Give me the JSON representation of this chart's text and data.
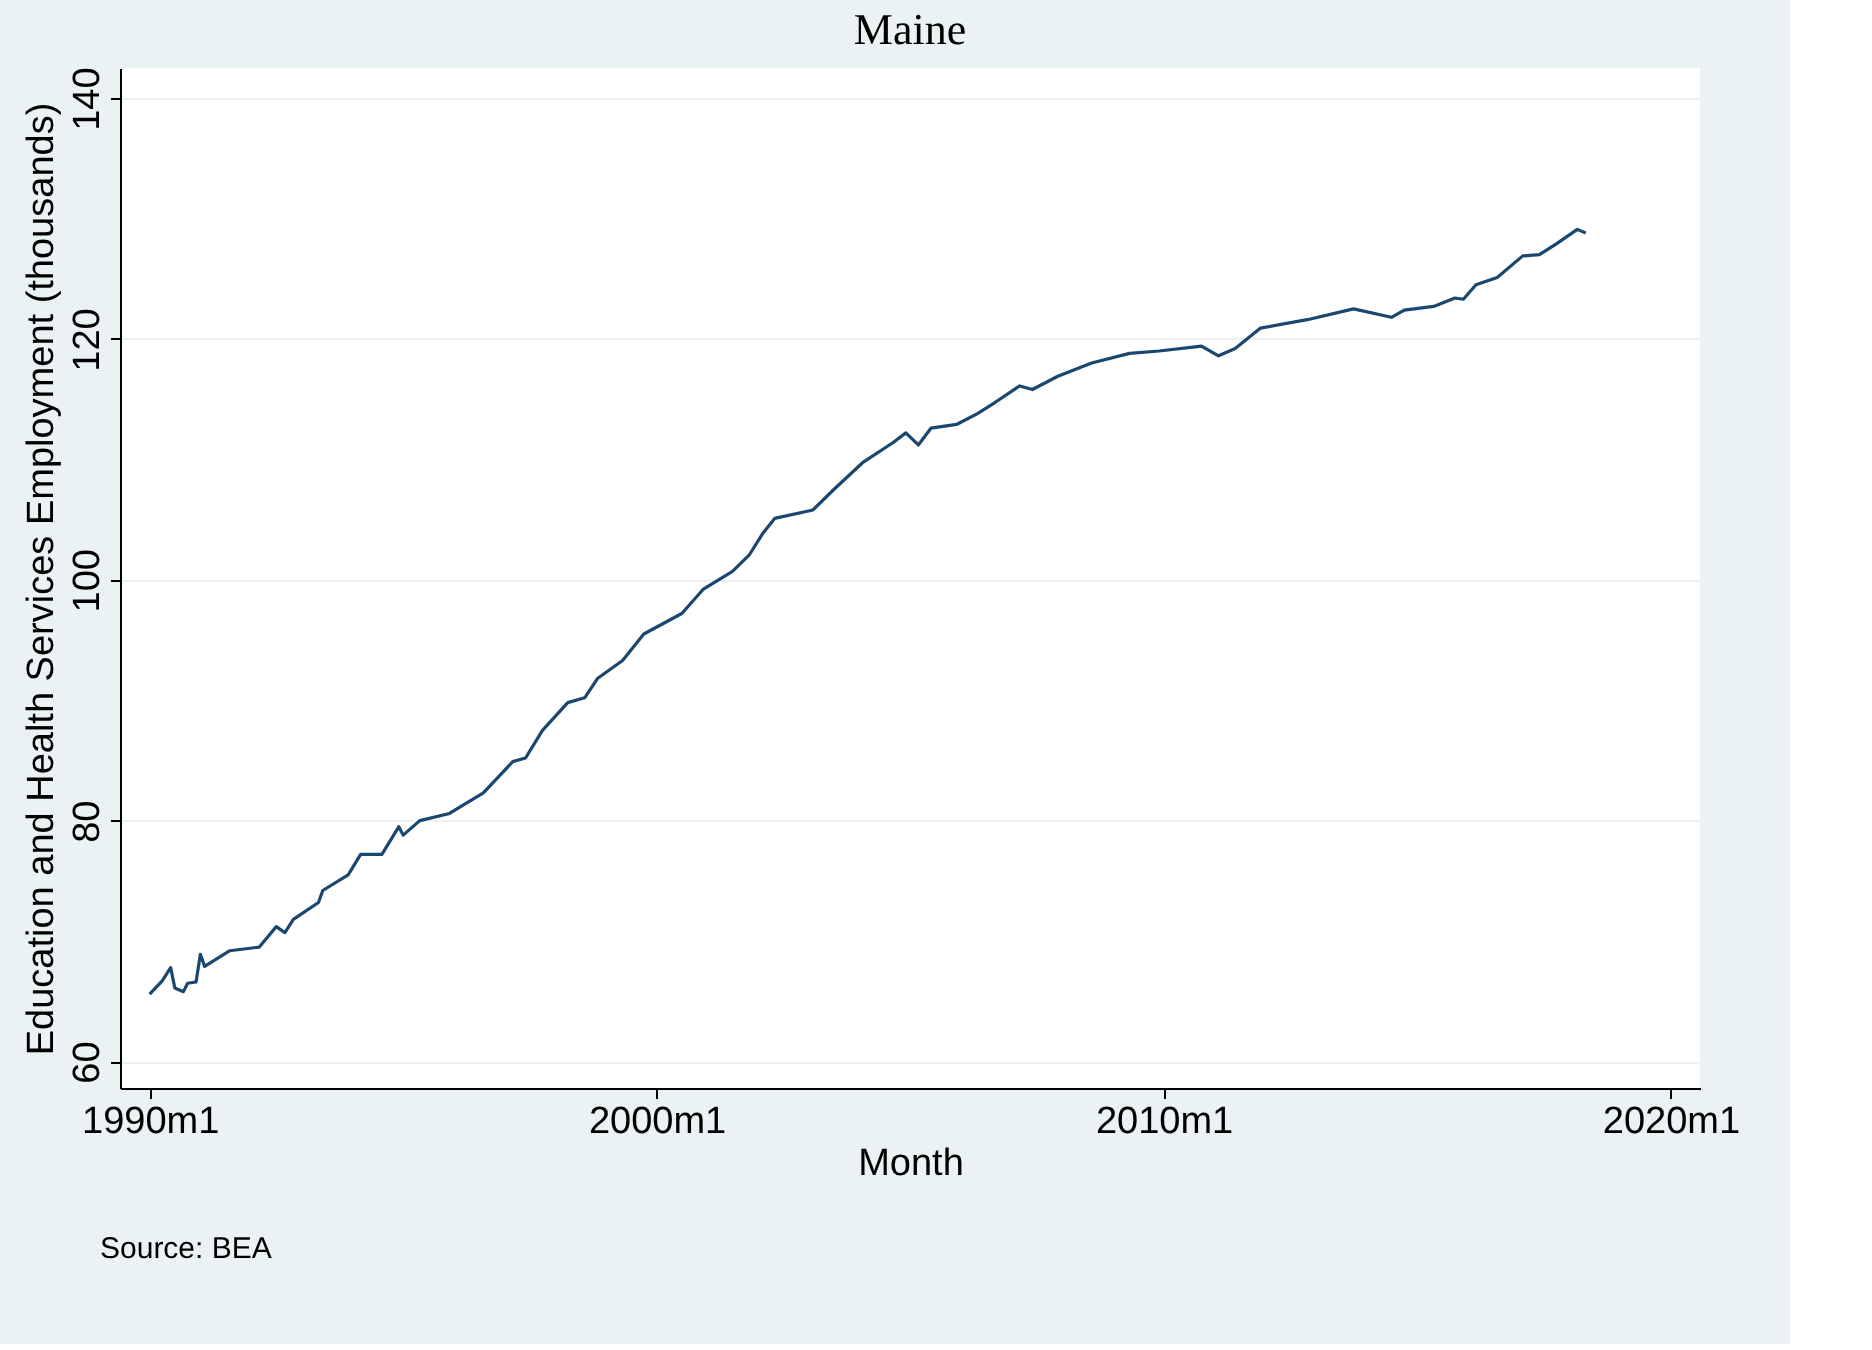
{
  "chart_data": {
    "type": "line",
    "title": "Maine",
    "xlabel": "Month",
    "ylabel": "Education and Health Services Employment (thousands)",
    "annotations": [
      "Source: BEA"
    ],
    "x": [
      "1990-01",
      "1990-04",
      "1990-06",
      "1990-07",
      "1990-09",
      "1990-10",
      "1990-12",
      "1991-01",
      "1991-02",
      "1991-08",
      "1992-03",
      "1992-07",
      "1992-09",
      "1992-11",
      "1993-05",
      "1993-06",
      "1993-12",
      "1994-03",
      "1994-08",
      "1994-12",
      "1995-01",
      "1995-05",
      "1995-12",
      "1996-08",
      "1997-03",
      "1997-06",
      "1997-10",
      "1998-04",
      "1998-08",
      "1998-11",
      "1999-05",
      "1999-10",
      "2000-07",
      "2000-12",
      "2001-07",
      "2001-11",
      "2002-02",
      "2002-05",
      "2003-02",
      "2003-07",
      "2004-02",
      "2004-09",
      "2004-12",
      "2005-03",
      "2005-06",
      "2005-12",
      "2006-05",
      "2006-09",
      "2007-03",
      "2007-06",
      "2007-12",
      "2008-08",
      "2009-05",
      "2009-12",
      "2010-10",
      "2011-02",
      "2011-06",
      "2011-12",
      "2012-11",
      "2013-10",
      "2014-07",
      "2014-10",
      "2015-05",
      "2015-10",
      "2015-12",
      "2016-03",
      "2016-08",
      "2017-02",
      "2017-06",
      "2017-10",
      "2018-03",
      "2018-05"
    ],
    "series": [
      {
        "color": "#1a476f",
        "values": [
          65.6,
          66.7,
          67.8,
          66.1,
          65.8,
          66.5,
          66.6,
          68.9,
          67.9,
          69.2,
          69.5,
          71.2,
          70.7,
          71.8,
          73.2,
          74.2,
          75.5,
          77.2,
          77.2,
          79.5,
          78.8,
          80.0,
          80.6,
          82.3,
          84.9,
          85.2,
          87.5,
          89.8,
          90.2,
          91.8,
          93.3,
          95.5,
          97.2,
          99.2,
          100.7,
          102.1,
          103.8,
          105.1,
          105.8,
          107.5,
          109.8,
          111.4,
          112.2,
          111.2,
          112.6,
          112.9,
          113.8,
          114.7,
          116.1,
          115.8,
          116.9,
          118.0,
          118.8,
          119.0,
          119.4,
          118.6,
          119.2,
          120.9,
          121.6,
          122.5,
          121.8,
          122.4,
          122.7,
          123.4,
          123.3,
          124.5,
          125.1,
          126.9,
          127.0,
          127.9,
          129.1,
          128.8
        ]
      }
    ],
    "xlim": [
      "1989-06",
      "2020-08"
    ],
    "xticks": [
      {
        "value": "1990-01",
        "label": "1990m1"
      },
      {
        "value": "2000-01",
        "label": "2000m1"
      },
      {
        "value": "2010-01",
        "label": "2010m1"
      },
      {
        "value": "2020-01",
        "label": "2020m1"
      }
    ],
    "ylim": [
      57.8,
      142.5
    ],
    "yticks": [
      60,
      80,
      100,
      120,
      140
    ],
    "grid": "y",
    "marker": "none",
    "line_style": "solid"
  }
}
